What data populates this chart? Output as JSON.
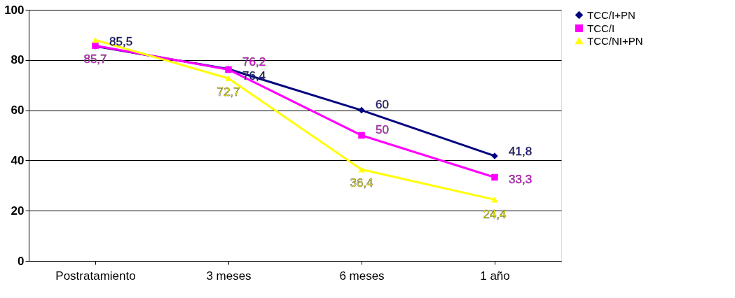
{
  "chart_data": {
    "type": "line",
    "categories": [
      "Postratamiento",
      "3 meses",
      "6 meses",
      "1 año"
    ],
    "ylim": [
      0,
      100
    ],
    "yticks": [
      0,
      20,
      40,
      60,
      80,
      100
    ],
    "grid": "y",
    "legend": "right",
    "series": [
      {
        "name": "TCC/I+PN",
        "color": "#000080",
        "marker": "diamond",
        "values": [
          85.5,
          76.4,
          60,
          41.8
        ],
        "value_labels": [
          "85,5",
          "76,4",
          "60",
          "41,8"
        ]
      },
      {
        "name": "TCC/I",
        "color": "#ff00ff",
        "marker": "square",
        "values": [
          85.7,
          76.2,
          50,
          33.3
        ],
        "value_labels": [
          "85,7",
          "76,2",
          "50",
          "33,3"
        ]
      },
      {
        "name": "TCC/NI+PN",
        "color": "#ffff00",
        "marker": "triangle",
        "values": [
          88,
          72.7,
          36.4,
          24.4
        ],
        "value_labels": [
          null,
          "72,7",
          "36,4",
          "24,4"
        ]
      }
    ]
  }
}
